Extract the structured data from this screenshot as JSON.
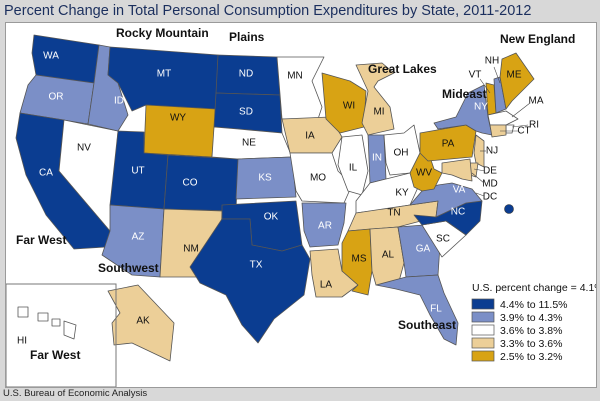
{
  "title": "Percent Change in Total Personal Consumption Expenditures by State, 2011-2012",
  "source": "U.S. Bureau of Economic Analysis",
  "legend": {
    "header": "U.S. percent change = 4.1%",
    "classes": [
      {
        "label": "4.4% to 11.5%",
        "color": "#0b3d91"
      },
      {
        "label": "3.9% to 4.3%",
        "color": "#7b8fc7"
      },
      {
        "label": "3.6% to 3.8%",
        "color": "#ffffff"
      },
      {
        "label": "3.3% to 3.6%",
        "color": "#eccf98"
      },
      {
        "label": "2.5% to 3.2%",
        "color": "#d8a314"
      }
    ]
  },
  "regions": {
    "far_west_top": "Far West",
    "far_west_bottom": "Far West",
    "rocky_mountain": "Rocky Mountain",
    "plains": "Plains",
    "great_lakes": "Great Lakes",
    "mideast": "Mideast",
    "new_england": "New England",
    "southwest": "Southwest",
    "southeast": "Southeast"
  },
  "states": [
    {
      "abbr": "WA",
      "class": 0
    },
    {
      "abbr": "OR",
      "class": 1
    },
    {
      "abbr": "CA",
      "class": 0
    },
    {
      "abbr": "NV",
      "class": 2
    },
    {
      "abbr": "ID",
      "class": 1
    },
    {
      "abbr": "MT",
      "class": 0
    },
    {
      "abbr": "WY",
      "class": 4
    },
    {
      "abbr": "UT",
      "class": 0
    },
    {
      "abbr": "CO",
      "class": 0
    },
    {
      "abbr": "AZ",
      "class": 1
    },
    {
      "abbr": "NM",
      "class": 3
    },
    {
      "abbr": "ND",
      "class": 0
    },
    {
      "abbr": "SD",
      "class": 0
    },
    {
      "abbr": "NE",
      "class": 2
    },
    {
      "abbr": "KS",
      "class": 1
    },
    {
      "abbr": "OK",
      "class": 0
    },
    {
      "abbr": "TX",
      "class": 0
    },
    {
      "abbr": "MN",
      "class": 2
    },
    {
      "abbr": "IA",
      "class": 3
    },
    {
      "abbr": "MO",
      "class": 2
    },
    {
      "abbr": "AR",
      "class": 1
    },
    {
      "abbr": "LA",
      "class": 3
    },
    {
      "abbr": "WI",
      "class": 4
    },
    {
      "abbr": "MI",
      "class": 3
    },
    {
      "abbr": "IL",
      "class": 2
    },
    {
      "abbr": "IN",
      "class": 1
    },
    {
      "abbr": "OH",
      "class": 2
    },
    {
      "abbr": "KY",
      "class": 2
    },
    {
      "abbr": "TN",
      "class": 3
    },
    {
      "abbr": "MS",
      "class": 4
    },
    {
      "abbr": "AL",
      "class": 3
    },
    {
      "abbr": "GA",
      "class": 1
    },
    {
      "abbr": "FL",
      "class": 1
    },
    {
      "abbr": "SC",
      "class": 2
    },
    {
      "abbr": "NC",
      "class": 0
    },
    {
      "abbr": "VA",
      "class": 1
    },
    {
      "abbr": "WV",
      "class": 4
    },
    {
      "abbr": "PA",
      "class": 4
    },
    {
      "abbr": "NY",
      "class": 1
    },
    {
      "abbr": "NJ",
      "class": 3
    },
    {
      "abbr": "DE",
      "class": 3
    },
    {
      "abbr": "MD",
      "class": 3
    },
    {
      "abbr": "DC",
      "class": 0
    },
    {
      "abbr": "VT",
      "class": 4
    },
    {
      "abbr": "NH",
      "class": 1
    },
    {
      "abbr": "ME",
      "class": 4
    },
    {
      "abbr": "MA",
      "class": 2
    },
    {
      "abbr": "RI",
      "class": 2
    },
    {
      "abbr": "CT",
      "class": 3
    },
    {
      "abbr": "AK",
      "class": 3
    },
    {
      "abbr": "HI",
      "class": 2
    }
  ]
}
